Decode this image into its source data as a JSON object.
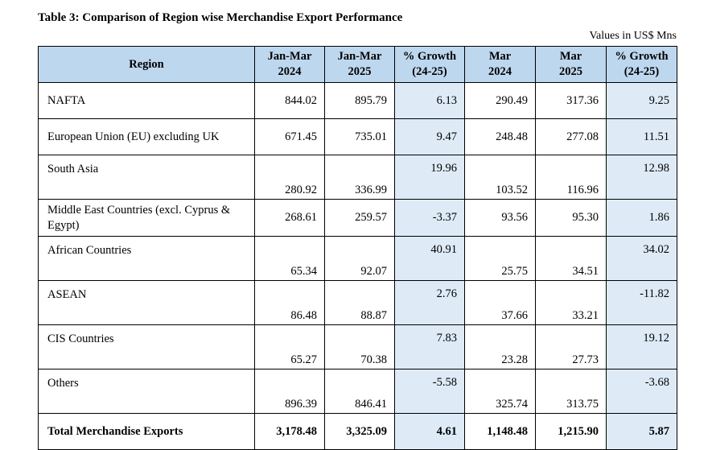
{
  "title": "Table 3: Comparison of Region wise Merchandise Export Performance",
  "units": "Values in US$ Mns",
  "headers": {
    "region": "Region",
    "jm2024_a": "Jan-Mar",
    "jm2024_b": "2024",
    "jm2025_a": "Jan-Mar",
    "jm2025_b": "2025",
    "g1_a": "% Growth",
    "g1_b": "(24-25)",
    "m2024_a": "Mar",
    "m2024_b": "2024",
    "m2025_a": "Mar",
    "m2025_b": "2025",
    "g2_a": "% Growth",
    "g2_b": "(24-25)"
  },
  "rows": [
    {
      "region": "NAFTA",
      "jm2024": "844.02",
      "jm2025": "895.79",
      "g1": "6.13",
      "m2024": "290.49",
      "m2025": "317.36",
      "g2": "9.25"
    },
    {
      "region": "European Union (EU) excluding UK",
      "jm2024": "671.45",
      "jm2025": "735.01",
      "g1": "9.47",
      "m2024": "248.48",
      "m2025": "277.08",
      "g2": "11.51"
    },
    {
      "region": "South Asia",
      "jm2024": "280.92",
      "jm2025": "336.99",
      "g1": "19.96",
      "m2024": "103.52",
      "m2025": "116.96",
      "g2": "12.98"
    },
    {
      "region": "Middle East Countries (excl. Cyprus & Egypt)",
      "jm2024": "268.61",
      "jm2025": "259.57",
      "g1": "-3.37",
      "m2024": "93.56",
      "m2025": "95.30",
      "g2": "1.86"
    },
    {
      "region": "African Countries",
      "jm2024": "65.34",
      "jm2025": "92.07",
      "g1": "40.91",
      "m2024": "25.75",
      "m2025": "34.51",
      "g2": "34.02"
    },
    {
      "region": "ASEAN",
      "jm2024": "86.48",
      "jm2025": "88.87",
      "g1": "2.76",
      "m2024": "37.66",
      "m2025": "33.21",
      "g2": "-11.82"
    },
    {
      "region": "CIS Countries",
      "jm2024": "65.27",
      "jm2025": "70.38",
      "g1": "7.83",
      "m2024": "23.28",
      "m2025": "27.73",
      "g2": "19.12"
    },
    {
      "region": "Others",
      "jm2024": "896.39",
      "jm2025": "846.41",
      "g1": "-5.58",
      "m2024": "325.74",
      "m2025": "313.75",
      "g2": "-3.68"
    }
  ],
  "total": {
    "region": "Total Merchandise Exports",
    "jm2024": "3,178.48",
    "jm2025": "3,325.09",
    "g1": "4.61",
    "m2024": "1,148.48",
    "m2025": "1,215.90",
    "g2": "5.87"
  }
}
